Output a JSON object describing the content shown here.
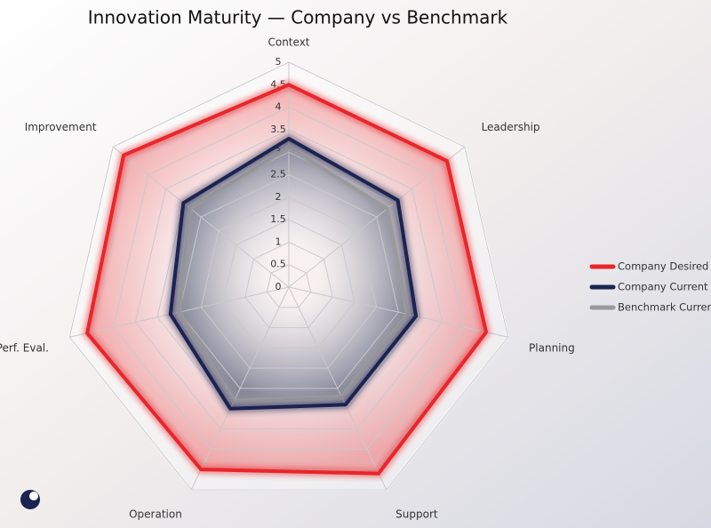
{
  "chart_data": {
    "type": "radar",
    "title": "Innovation Maturity — Company vs Benchmark",
    "categories": [
      "Context",
      "Leadership",
      "Planning",
      "Support",
      "Operation",
      "Perf. Eval.",
      "Improvement"
    ],
    "rlim": [
      0,
      5
    ],
    "rticks": [
      0,
      0.5,
      1,
      1.5,
      2,
      2.5,
      3,
      3.5,
      4,
      4.5,
      5
    ],
    "grid": true,
    "legend": "right",
    "series": [
      {
        "name": "Company Desired",
        "color": "#e8262a",
        "values": [
          4.5,
          4.5,
          4.5,
          4.6,
          4.5,
          4.6,
          4.7
        ]
      },
      {
        "name": "Company Current",
        "color": "#1b2350",
        "values": [
          3.3,
          3.1,
          2.9,
          2.9,
          3.0,
          2.7,
          3.0
        ]
      },
      {
        "name": "Benchmark Current",
        "color": "#9a9a9e",
        "values": [
          3.1,
          2.8,
          2.7,
          2.7,
          2.8,
          2.5,
          2.8
        ]
      }
    ]
  }
}
